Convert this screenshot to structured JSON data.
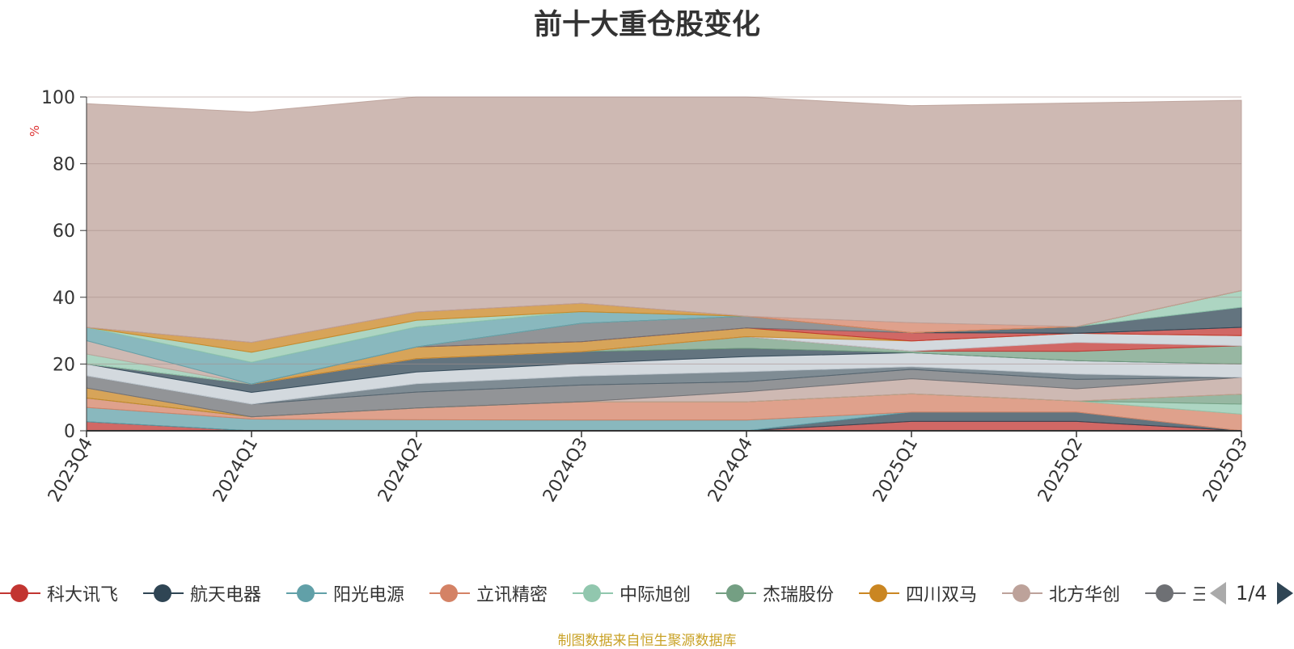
{
  "chart_data": {
    "type": "area",
    "stacked": true,
    "title": "前十大重仓股变化",
    "ylabel": "%",
    "xlabel": "",
    "ylim": [
      0,
      100
    ],
    "yticks": [
      "0",
      "20",
      "40",
      "60",
      "80",
      "100"
    ],
    "categories": [
      "2023Q4",
      "2024Q1",
      "2024Q2",
      "2024Q3",
      "2024Q4",
      "2025Q1",
      "2025Q2",
      "2025Q3"
    ],
    "grid": true,
    "legend_position": "bottom",
    "series": [
      {
        "name": "科大讯飞",
        "color": "#c23531",
        "values": [
          2.7,
          0,
          0,
          0,
          0,
          2.8,
          2.8,
          0
        ]
      },
      {
        "name": "航天电器",
        "color": "#2f4554",
        "values": [
          0,
          0,
          0,
          0,
          0,
          2.8,
          2.8,
          0
        ]
      },
      {
        "name": "阳光电源",
        "color": "#61a0a8",
        "values": [
          4.3,
          3.5,
          3.3,
          3.2,
          3.2,
          0,
          0,
          0
        ]
      },
      {
        "name": "立讯精密",
        "color": "#d48265",
        "values": [
          2.8,
          0.7,
          3.5,
          5.5,
          5.5,
          5.5,
          3.3,
          5.0
        ]
      },
      {
        "name": "中际旭创",
        "color": "#91c7ae",
        "values": [
          0,
          0,
          0,
          0,
          0,
          0,
          0,
          3.0
        ]
      },
      {
        "name": "杰瑞股份",
        "color": "#749f83",
        "values": [
          0,
          0,
          0,
          0,
          0,
          0,
          0,
          3.0
        ]
      },
      {
        "name": "四川双马",
        "color": "#ca8622",
        "values": [
          3.0,
          0,
          0,
          0,
          0,
          0,
          0,
          0
        ]
      },
      {
        "name": "北方华创",
        "color": "#bda29a",
        "values": [
          0,
          0,
          0,
          0,
          3.0,
          4.5,
          3.7,
          5.0
        ]
      },
      {
        "name": "三",
        "color": "#6e7074",
        "values": [
          3.7,
          3.8,
          4.8,
          5.0,
          3.0,
          2.8,
          2.8,
          0
        ]
      },
      {
        "name": "",
        "color": "#546570",
        "values": [
          0,
          0,
          2.5,
          2.7,
          3.0,
          0.8,
          1.6,
          0
        ]
      },
      {
        "name": "",
        "color": "#c4ccd3",
        "values": [
          3.5,
          3.5,
          3.5,
          3.8,
          4.5,
          4.2,
          4.0,
          4.0
        ]
      },
      {
        "name": "",
        "color": "#2f4554",
        "values": [
          0,
          2.5,
          4.0,
          3.5,
          2.5,
          0,
          0,
          0
        ]
      },
      {
        "name": "",
        "color": "#749f83",
        "values": [
          0,
          0,
          0,
          0,
          3.5,
          0.5,
          2.8,
          5.5
        ]
      },
      {
        "name": "",
        "color": "#c23531",
        "values": [
          0,
          0,
          0,
          0,
          0,
          0,
          2.7,
          0
        ]
      },
      {
        "name": "",
        "color": "#c4ccd3",
        "values": [
          0,
          0,
          0,
          0,
          0,
          3.0,
          2.7,
          3.0
        ]
      },
      {
        "name": "",
        "color": "#ca8622",
        "values": [
          0,
          0,
          3.5,
          3.0,
          2.6,
          0,
          0,
          0
        ]
      },
      {
        "name": "",
        "color": "#c23531",
        "values": [
          0,
          0,
          0,
          0,
          0,
          2.5,
          0,
          2.5
        ]
      },
      {
        "name": "",
        "color": "#6e7074",
        "values": [
          0,
          0,
          0,
          5.5,
          3.5,
          0,
          0,
          0
        ]
      },
      {
        "name": "",
        "color": "#2f4554",
        "values": [
          0,
          0,
          0,
          0,
          0,
          0,
          2.0,
          6.0
        ]
      },
      {
        "name": "",
        "color": "#91c7ae",
        "values": [
          3.0,
          0,
          0,
          0,
          0,
          0,
          0,
          5.0
        ]
      },
      {
        "name": "",
        "color": "#bda29a",
        "values": [
          4.0,
          0,
          0,
          0,
          0,
          0,
          0,
          0
        ]
      },
      {
        "name": "",
        "color": "#61a0a8",
        "values": [
          4.0,
          6.5,
          6.0,
          3.5,
          0,
          0,
          0,
          0
        ]
      },
      {
        "name": "",
        "color": "#91c7ae",
        "values": [
          0,
          3.0,
          2.0,
          0,
          0,
          0,
          0,
          0
        ]
      },
      {
        "name": "",
        "color": "#ca8622",
        "values": [
          0,
          3.0,
          2.5,
          2.5,
          0,
          0,
          0,
          0
        ]
      },
      {
        "name": "",
        "color": "#d48265",
        "values": [
          0,
          0,
          0,
          0,
          0,
          3.0,
          0,
          0
        ]
      },
      {
        "name": "",
        "color": "#bda29a",
        "values": [
          67,
          69,
          65,
          64,
          66,
          65,
          67,
          57
        ]
      }
    ]
  },
  "legend": {
    "items": [
      {
        "label": "科大讯飞",
        "color": "#c23531"
      },
      {
        "label": "航天电器",
        "color": "#2f4554"
      },
      {
        "label": "阳光电源",
        "color": "#61a0a8"
      },
      {
        "label": "立讯精密",
        "color": "#d48265"
      },
      {
        "label": "中际旭创",
        "color": "#91c7ae"
      },
      {
        "label": "杰瑞股份",
        "color": "#749f83"
      },
      {
        "label": "四川双马",
        "color": "#ca8622"
      },
      {
        "label": "北方华创",
        "color": "#bda29a"
      },
      {
        "label": "三",
        "color": "#6e7074"
      }
    ],
    "page": "1/4"
  },
  "footer": {
    "note": "制图数据来自恒生聚源数据库"
  }
}
